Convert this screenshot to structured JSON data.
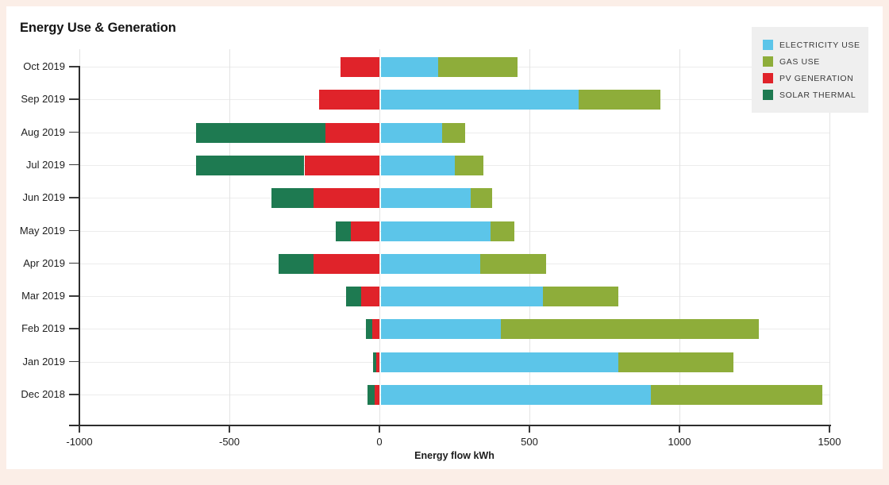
{
  "page": {
    "background_color": "#fbeee7",
    "panel_color": "#ffffff",
    "legend_background": "#efefef"
  },
  "chart_data": {
    "type": "bar",
    "orientation": "horizontal",
    "stacked": true,
    "title": "Energy Use & Generation",
    "xlabel": "Energy flow kWh",
    "unit": "kWh",
    "xlim": [
      -1000,
      1500
    ],
    "xticks": [
      -1000,
      -500,
      0,
      500,
      1000,
      1500
    ],
    "grid": true,
    "legend_position": "top-right",
    "categories": [
      "Oct 2019",
      "Sep 2019",
      "Aug 2019",
      "Jul 2019",
      "Jun 2019",
      "May 2019",
      "Apr 2019",
      "Mar 2019",
      "Feb 2019",
      "Jan 2019",
      "Dec 2018"
    ],
    "series": [
      {
        "name": "ELECTRICITY USE",
        "color": "#5cc5e9",
        "values": [
          190,
          660,
          205,
          245,
          300,
          365,
          330,
          540,
          400,
          790,
          900
        ]
      },
      {
        "name": "GAS USE",
        "color": "#8ead3a",
        "values": [
          265,
          270,
          75,
          95,
          70,
          80,
          220,
          250,
          860,
          385,
          570
        ]
      },
      {
        "name": "PV GENERATION",
        "color": "#e0232a",
        "values": [
          -130,
          -200,
          -180,
          -250,
          -220,
          -95,
          -220,
          -60,
          -25,
          -10,
          -15
        ]
      },
      {
        "name": "SOLAR THERMAL",
        "color": "#1e7a51",
        "values": [
          0,
          0,
          -430,
          -360,
          -140,
          -50,
          -115,
          -50,
          -20,
          -10,
          -25
        ]
      }
    ]
  }
}
